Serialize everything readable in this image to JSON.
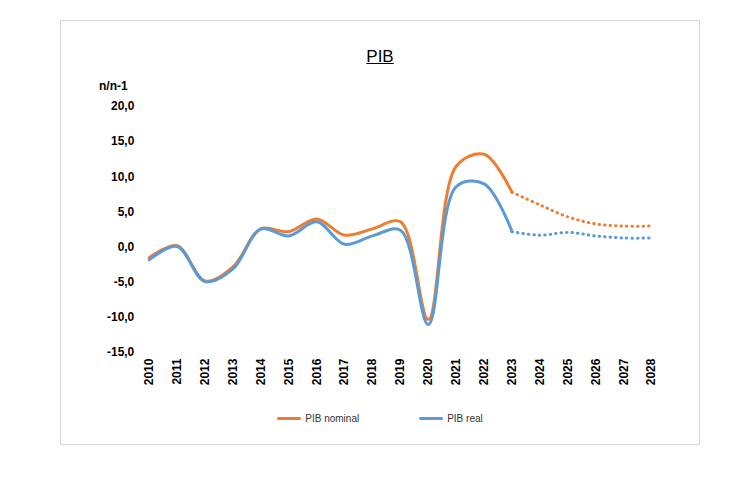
{
  "chart_data": {
    "type": "line",
    "title": "PIB",
    "y_label": "n/n-1",
    "categories": [
      "2010",
      "2011",
      "2012",
      "2013",
      "2014",
      "2015",
      "2016",
      "2017",
      "2018",
      "2019",
      "2020",
      "2021",
      "2022",
      "2023",
      "2024",
      "2025",
      "2026",
      "2027",
      "2028"
    ],
    "series": [
      {
        "name": "PIB nominal",
        "color": "#ed7d31",
        "line_style": "solid",
        "values": [
          -1.5,
          0.2,
          -4.8,
          -2.8,
          2.6,
          2.2,
          4.0,
          1.7,
          2.6,
          3.6,
          -10.3,
          11.5,
          13.2,
          7.8,
          null,
          null,
          null,
          null,
          null
        ]
      },
      {
        "name": "PIB nominal",
        "color": "#ed7d31",
        "line_style": "dotted",
        "values": [
          null,
          null,
          null,
          null,
          null,
          null,
          null,
          null,
          null,
          null,
          null,
          null,
          null,
          7.8,
          6.0,
          4.3,
          3.3,
          3.0,
          3.0
        ]
      },
      {
        "name": "PIB real",
        "color": "#5b9bd5",
        "line_style": "solid",
        "values": [
          -1.8,
          0.1,
          -4.9,
          -3.1,
          2.6,
          1.6,
          3.6,
          0.4,
          1.6,
          2.4,
          -11.0,
          8.6,
          9.0,
          2.2,
          null,
          null,
          null,
          null,
          null
        ]
      },
      {
        "name": "PIB real",
        "color": "#5b9bd5",
        "line_style": "dotted",
        "values": [
          null,
          null,
          null,
          null,
          null,
          null,
          null,
          null,
          null,
          null,
          null,
          null,
          null,
          2.2,
          1.7,
          2.1,
          1.6,
          1.3,
          1.3
        ]
      }
    ],
    "ylim": [
      -15,
      20
    ],
    "yticks": [
      {
        "value": -15,
        "label": "-15,0"
      },
      {
        "value": -10,
        "label": "-10,0"
      },
      {
        "value": -5,
        "label": "-5,0"
      },
      {
        "value": 0,
        "label": "0,0"
      },
      {
        "value": 5,
        "label": "5,0"
      },
      {
        "value": 10,
        "label": "10,0"
      },
      {
        "value": 15,
        "label": "15,0"
      },
      {
        "value": 20,
        "label": "20,0"
      }
    ],
    "grid": false,
    "legend": "bottom"
  }
}
